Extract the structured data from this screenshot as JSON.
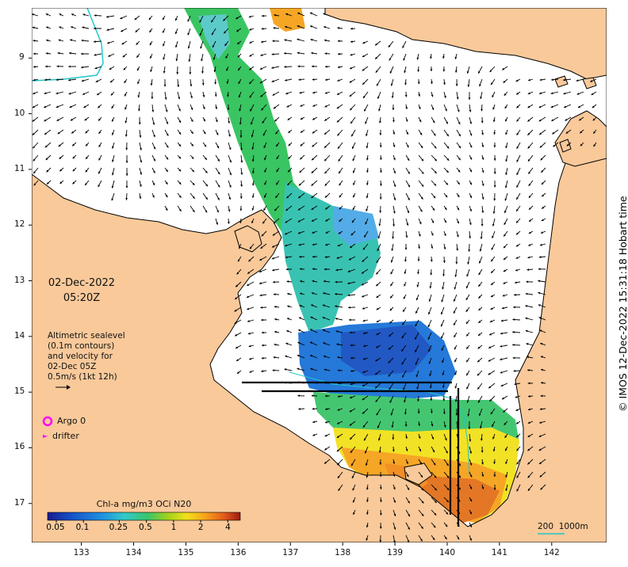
{
  "date": {
    "day": "02-Dec-2022",
    "time": "05:20Z"
  },
  "legend": {
    "lines": [
      "Altimetric sealevel",
      "(0.1m contours)",
      "and velocity for",
      "02-Dec 05Z",
      "0.5m/s (1kt 12h)"
    ]
  },
  "argo_label": "Argo 0",
  "drifter_label": "drifter",
  "colorbar": {
    "title": "Chl-a mg/m3 OCi N20",
    "ticks": [
      "0.05",
      "0.1",
      "0.25",
      "0.5",
      "1",
      "2",
      "4"
    ],
    "colors": [
      "#1a1a8c",
      "#1550c8",
      "#1e90e0",
      "#33c9c9",
      "#3ac46a",
      "#9ed11c",
      "#f2e11a",
      "#f6a21a",
      "#e2571a",
      "#9b1a10"
    ]
  },
  "scale_bar": {
    "label1": "200",
    "label2": "1000m"
  },
  "credit": "© IMOS 12-Dec-2022 15:31:18 Hobart time",
  "axes": {
    "x_ticks": [
      "133",
      "134",
      "135",
      "136",
      "137",
      "138",
      "139",
      "140",
      "141",
      "142"
    ],
    "y_ticks": [
      "9",
      "10",
      "11",
      "12",
      "13",
      "14",
      "15",
      "16",
      "17"
    ],
    "x_range": [
      132.05,
      143.05
    ],
    "y_range": [
      -8.1,
      -17.7
    ]
  },
  "colors": {
    "land": "#f9c99a",
    "sea": "#ffffff",
    "coast": "#000000",
    "arrow": "#000000",
    "argo": "#ff00ff",
    "boundary": "#20c8c8"
  }
}
